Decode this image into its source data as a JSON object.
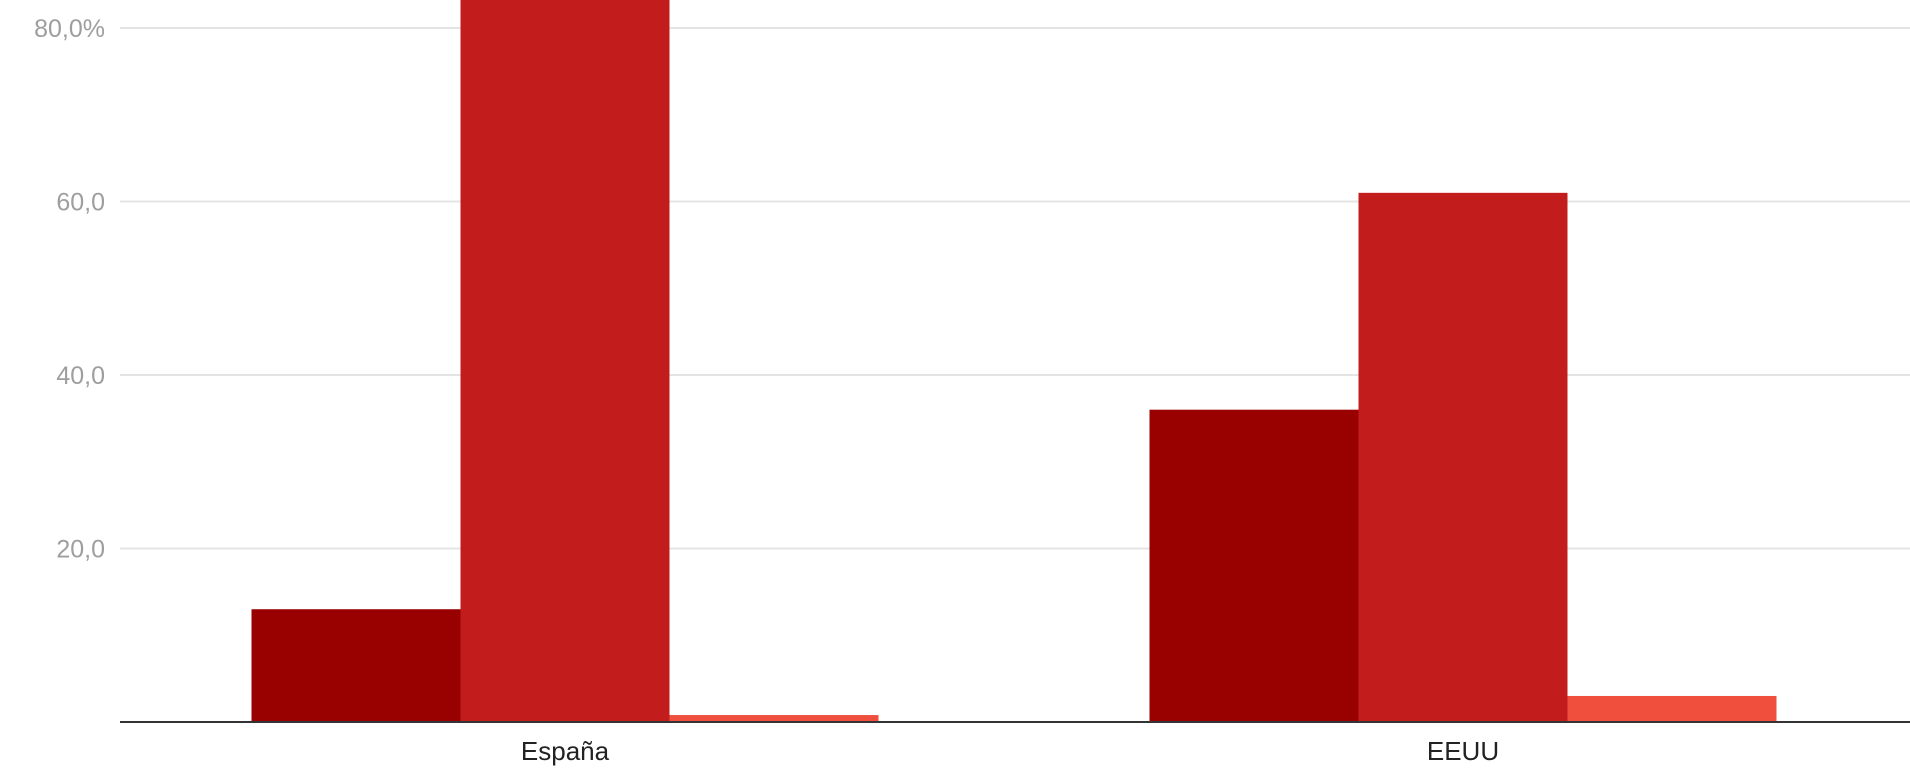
{
  "chart_data": {
    "type": "bar",
    "categories": [
      "España",
      "EEUU"
    ],
    "series": [
      {
        "values": [
          13.0,
          36.0
        ],
        "color": "#990000"
      },
      {
        "values": [
          85.0,
          61.0
        ],
        "color": "#c21d1c"
      },
      {
        "values": [
          0.8,
          3.0
        ],
        "color": "#ef4f3c"
      }
    ],
    "y_ticks": [
      {
        "value": 20,
        "label": "20,0"
      },
      {
        "value": 40,
        "label": "40,0"
      },
      {
        "value": 60,
        "label": "60,0"
      },
      {
        "value": 80,
        "label": "80,0%"
      }
    ],
    "ylim": [
      0,
      80
    ],
    "grid": true,
    "legend": "none",
    "title": "",
    "xlabel": "",
    "ylabel": ""
  }
}
